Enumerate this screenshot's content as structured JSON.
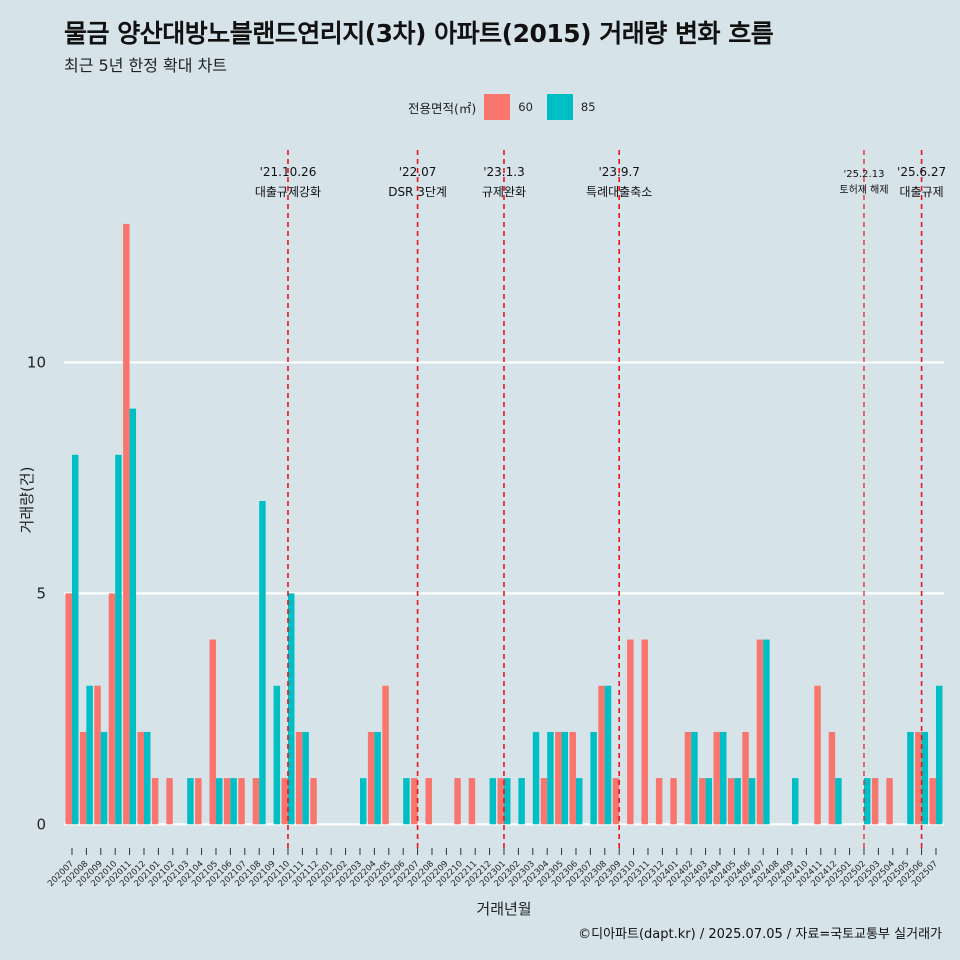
{
  "title": "물금 양산대방노블랜드연리지(3차) 아파트(2015) 거래량 변화 흐름",
  "subtitle": "최근 5년 한정 확대 차트",
  "caption": "©디아파트(dapt.kr) / 2025.07.05 / 자료=국토교통부 실거래가",
  "legend": {
    "title": "전용면적(㎡)",
    "items": [
      {
        "label": "60",
        "color": "#f8766d"
      },
      {
        "label": "85",
        "color": "#00bfc4"
      }
    ]
  },
  "chart_data": {
    "type": "bar",
    "title": "물금 양산대방노블랜드연리지(3차) 아파트(2015) 거래량 변화 흐름",
    "xlabel": "거래년월",
    "ylabel": "거래량(건)",
    "ylim": [
      -0.6,
      14.6
    ],
    "yticks": [
      0,
      5,
      10
    ],
    "categories": [
      "202007",
      "202008",
      "202009",
      "202010",
      "202011",
      "202012",
      "202101",
      "202102",
      "202103",
      "202104",
      "202105",
      "202106",
      "202107",
      "202108",
      "202109",
      "202110",
      "202111",
      "202112",
      "202201",
      "202202",
      "202203",
      "202204",
      "202205",
      "202206",
      "202207",
      "202208",
      "202209",
      "202210",
      "202211",
      "202212",
      "202301",
      "202302",
      "202303",
      "202304",
      "202305",
      "202306",
      "202307",
      "202308",
      "202309",
      "202310",
      "202311",
      "202312",
      "202401",
      "202402",
      "202403",
      "202404",
      "202405",
      "202406",
      "202407",
      "202408",
      "202409",
      "202410",
      "202411",
      "202412",
      "202501",
      "202502",
      "202503",
      "202504",
      "202505",
      "202506",
      "202507"
    ],
    "series": [
      {
        "name": "60",
        "color": "#f8766d",
        "values": [
          5,
          2,
          3,
          5,
          13,
          2,
          1,
          1,
          0,
          1,
          4,
          1,
          1,
          1,
          0,
          1,
          2,
          1,
          0,
          0,
          0,
          2,
          3,
          0,
          1,
          1,
          0,
          1,
          1,
          0,
          1,
          0,
          0,
          1,
          2,
          2,
          0,
          3,
          1,
          4,
          4,
          1,
          1,
          2,
          1,
          2,
          1,
          2,
          4,
          0,
          0,
          0,
          3,
          2,
          0,
          0,
          1,
          1,
          0,
          2,
          1
        ]
      },
      {
        "name": "85",
        "color": "#00bfc4",
        "values": [
          8,
          3,
          2,
          8,
          9,
          2,
          0,
          0,
          1,
          0,
          1,
          1,
          0,
          7,
          3,
          5,
          2,
          0,
          0,
          0,
          1,
          2,
          0,
          1,
          0,
          0,
          0,
          0,
          0,
          1,
          1,
          1,
          2,
          2,
          2,
          1,
          2,
          3,
          0,
          0,
          0,
          0,
          0,
          2,
          1,
          2,
          1,
          1,
          4,
          0,
          1,
          0,
          0,
          1,
          0,
          1,
          0,
          0,
          2,
          2,
          3
        ]
      }
    ],
    "annotations": [
      {
        "category": "202110",
        "date": "'21.10.26",
        "label": "대출규제강화",
        "small": false
      },
      {
        "category": "202207",
        "date": "'22.07",
        "label": "DSR 3단계",
        "small": false
      },
      {
        "category": "202301",
        "date": "'23.1.3",
        "label": "규제완화",
        "small": false
      },
      {
        "category": "202309",
        "date": "'23.9.7",
        "label": "특례대출축소",
        "small": false
      },
      {
        "category": "202502",
        "date": "'25.2.13",
        "label": "토허제 해제",
        "small": true
      },
      {
        "category": "202506",
        "date": "'25.6.27",
        "label": "대출규제",
        "small": false
      }
    ]
  }
}
